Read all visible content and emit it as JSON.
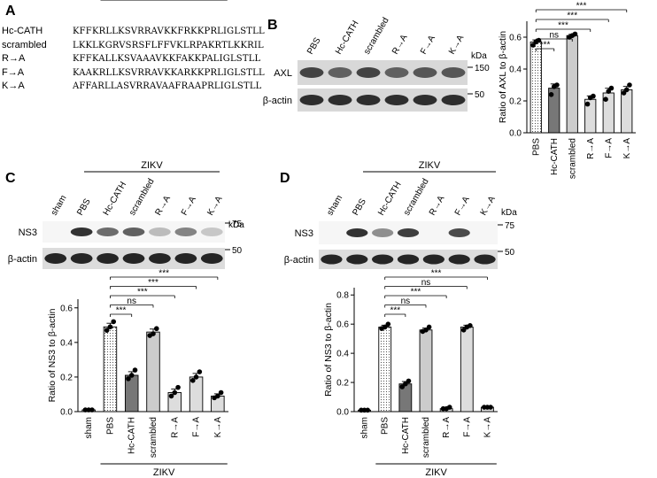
{
  "panels": {
    "a": "A",
    "b": "B",
    "c": "C",
    "d": "D"
  },
  "sequences": [
    {
      "name": "Hc-CATH",
      "seq": "KFFKRLLKSVRRAVKKFRKKPRLIGLSTLL"
    },
    {
      "name": "scrambled",
      "seq": "LKKLKGRVSRSFLFFVKLRPAKRTLKKRIL"
    },
    {
      "name": "R→A",
      "seq": "KFFKALLKSVAAAVKKFAKKPALIGLSTLL"
    },
    {
      "name": "F→A",
      "seq": "KAAKRLLKSVRRAVKKARKKPRLIGLSTLL"
    },
    {
      "name": "K→A",
      "seq": "AFFARLLASVRRAVAAFRAAPRLIGLSTLL"
    }
  ],
  "blots": {
    "kda": "kDa",
    "b": {
      "lanes": [
        "PBS",
        "Hc-CATH",
        "scrambled",
        "R→A",
        "F→A",
        "K→A"
      ],
      "rows": [
        "AXL",
        "β-actin"
      ],
      "markers": [
        "150",
        "50"
      ]
    },
    "c": {
      "group": "ZIKV",
      "lanes": [
        "sham",
        "PBS",
        "Hc-CATH",
        "scrambled",
        "R→A",
        "F→A",
        "K→A"
      ],
      "rows": [
        "NS3",
        "β-actin"
      ],
      "markers": [
        "75",
        "50"
      ]
    },
    "d": {
      "group": "ZIKV",
      "lanes": [
        "sham",
        "PBS",
        "Hc-CATH",
        "scrambled",
        "R→A",
        "F→A",
        "K→A"
      ],
      "rows": [
        "NS3",
        "β-actin"
      ],
      "markers": [
        "75",
        "50"
      ]
    }
  },
  "chart_data": [
    {
      "panel": "B",
      "type": "bar",
      "categories": [
        "PBS",
        "Hc-CATH",
        "scrambled",
        "R→A",
        "F→A",
        "K→A"
      ],
      "values": [
        0.57,
        0.28,
        0.61,
        0.21,
        0.25,
        0.27
      ],
      "points": [
        [
          0.55,
          0.57,
          0.58
        ],
        [
          0.24,
          0.29,
          0.3
        ],
        [
          0.6,
          0.61,
          0.62
        ],
        [
          0.18,
          0.22,
          0.23
        ],
        [
          0.21,
          0.26,
          0.28
        ],
        [
          0.25,
          0.27,
          0.3
        ]
      ],
      "fills": [
        "dots",
        "#777777",
        "#cccccc",
        "#dddddd",
        "#dddddd",
        "#dddddd"
      ],
      "ylabel": "Ratio of AXL  to β-actin",
      "ylim": [
        0,
        0.7
      ],
      "yticks": [
        "0.0",
        "0.2",
        "0.4",
        "0.6"
      ],
      "comparisons": [
        {
          "from": 0,
          "to": 1,
          "label": "***"
        },
        {
          "from": 0,
          "to": 2,
          "label": "ns"
        },
        {
          "from": 0,
          "to": 3,
          "label": "***"
        },
        {
          "from": 0,
          "to": 4,
          "label": "***"
        },
        {
          "from": 0,
          "to": 5,
          "label": "***"
        }
      ]
    },
    {
      "panel": "C",
      "type": "bar",
      "categories": [
        "sham",
        "PBS",
        "Hc-CATH",
        "scrambled",
        "R→A",
        "F→A",
        "K→A"
      ],
      "values": [
        0.01,
        0.49,
        0.21,
        0.46,
        0.11,
        0.2,
        0.09
      ],
      "points": [
        [
          0.01,
          0.01,
          0.01
        ],
        [
          0.47,
          0.49,
          0.52
        ],
        [
          0.19,
          0.21,
          0.24
        ],
        [
          0.44,
          0.45,
          0.48
        ],
        [
          0.09,
          0.11,
          0.14
        ],
        [
          0.18,
          0.2,
          0.23
        ],
        [
          0.08,
          0.09,
          0.11
        ]
      ],
      "fills": [
        "#ffffff",
        "dots",
        "#777777",
        "#cccccc",
        "#dddddd",
        "#dddddd",
        "#dddddd"
      ],
      "ylabel": "Ratio of NS3 to β-actin",
      "ylim": [
        0,
        0.65
      ],
      "yticks": [
        "0.0",
        "0.2",
        "0.4",
        "0.6"
      ],
      "xgroup": "ZIKV",
      "comparisons": [
        {
          "from": 1,
          "to": 2,
          "label": "***"
        },
        {
          "from": 1,
          "to": 3,
          "label": "ns"
        },
        {
          "from": 1,
          "to": 4,
          "label": "***"
        },
        {
          "from": 1,
          "to": 5,
          "label": "***"
        },
        {
          "from": 1,
          "to": 6,
          "label": "***"
        }
      ]
    },
    {
      "panel": "D",
      "type": "bar",
      "categories": [
        "sham",
        "PBS",
        "Hc-CATH",
        "scrambled",
        "R→A",
        "F→A",
        "K→A"
      ],
      "values": [
        0.01,
        0.58,
        0.19,
        0.56,
        0.02,
        0.58,
        0.03
      ],
      "points": [
        [
          0.01,
          0.01,
          0.01
        ],
        [
          0.57,
          0.58,
          0.6
        ],
        [
          0.17,
          0.19,
          0.21
        ],
        [
          0.55,
          0.56,
          0.58
        ],
        [
          0.02,
          0.02,
          0.03
        ],
        [
          0.56,
          0.58,
          0.59
        ],
        [
          0.03,
          0.03,
          0.03
        ]
      ],
      "fills": [
        "#ffffff",
        "dots",
        "#777777",
        "#cccccc",
        "#dddddd",
        "#dddddd",
        "#dddddd"
      ],
      "ylabel": "Ratio of NS3 to β-actin",
      "ylim": [
        0,
        0.85
      ],
      "yticks": [
        "0.0",
        "0.2",
        "0.4",
        "0.6",
        "0.8"
      ],
      "xgroup": "ZIKV",
      "comparisons": [
        {
          "from": 1,
          "to": 2,
          "label": "***"
        },
        {
          "from": 1,
          "to": 3,
          "label": "ns"
        },
        {
          "from": 1,
          "to": 4,
          "label": "***"
        },
        {
          "from": 1,
          "to": 5,
          "label": "ns"
        },
        {
          "from": 1,
          "to": 6,
          "label": "***"
        }
      ]
    }
  ]
}
